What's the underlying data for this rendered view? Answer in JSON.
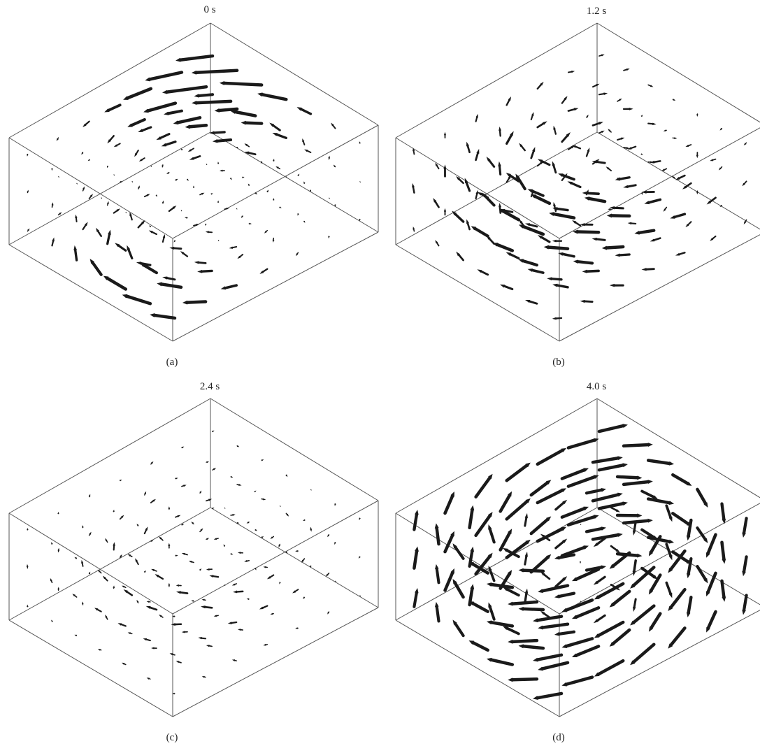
{
  "figure": {
    "panels": [
      {
        "id": "a",
        "time_label": "0 s",
        "panel_label": "(a)",
        "vortex": "diagonal-front-to-back",
        "strength": 1.0
      },
      {
        "id": "b",
        "time_label": "1.2 s",
        "panel_label": "(b)",
        "vortex": "single-center-loop",
        "strength": 0.9
      },
      {
        "id": "c",
        "time_label": "2.4 s",
        "panel_label": "(c)",
        "vortex": "weak-center-loop",
        "strength": 0.55
      },
      {
        "id": "d",
        "time_label": "4.0 s",
        "panel_label": "(d)",
        "vortex": "strong-swirl",
        "strength": 1.1
      }
    ],
    "colors": {
      "arrow": "#1a1a1a",
      "box_edge": "#555555",
      "text": "#222222"
    }
  }
}
